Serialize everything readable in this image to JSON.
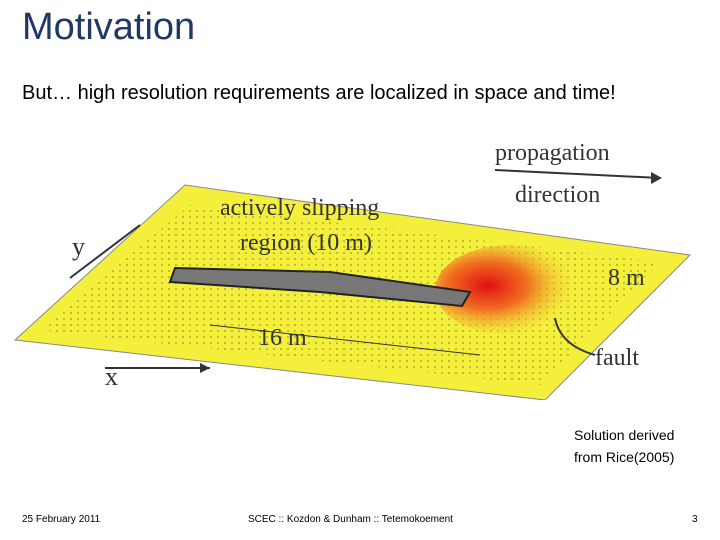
{
  "header": {
    "title": "Motivation"
  },
  "body": {
    "text": "But… high resolution requirements are localized in space and time!"
  },
  "figure": {
    "labels": {
      "propagation": "propagation",
      "direction": "direction",
      "slip_line1": "actively slipping",
      "slip_line2": "region (10 m)",
      "y": "y",
      "x": "x",
      "length": "16 m",
      "width": "8 m",
      "fault": "fault"
    },
    "caption": [
      "Solution derived",
      "from Rice(2005)"
    ]
  },
  "footer": {
    "date": "25 February 2011",
    "center": "SCEC :: Kozdon & Dunham :: Tetemokoement",
    "page": "3"
  }
}
